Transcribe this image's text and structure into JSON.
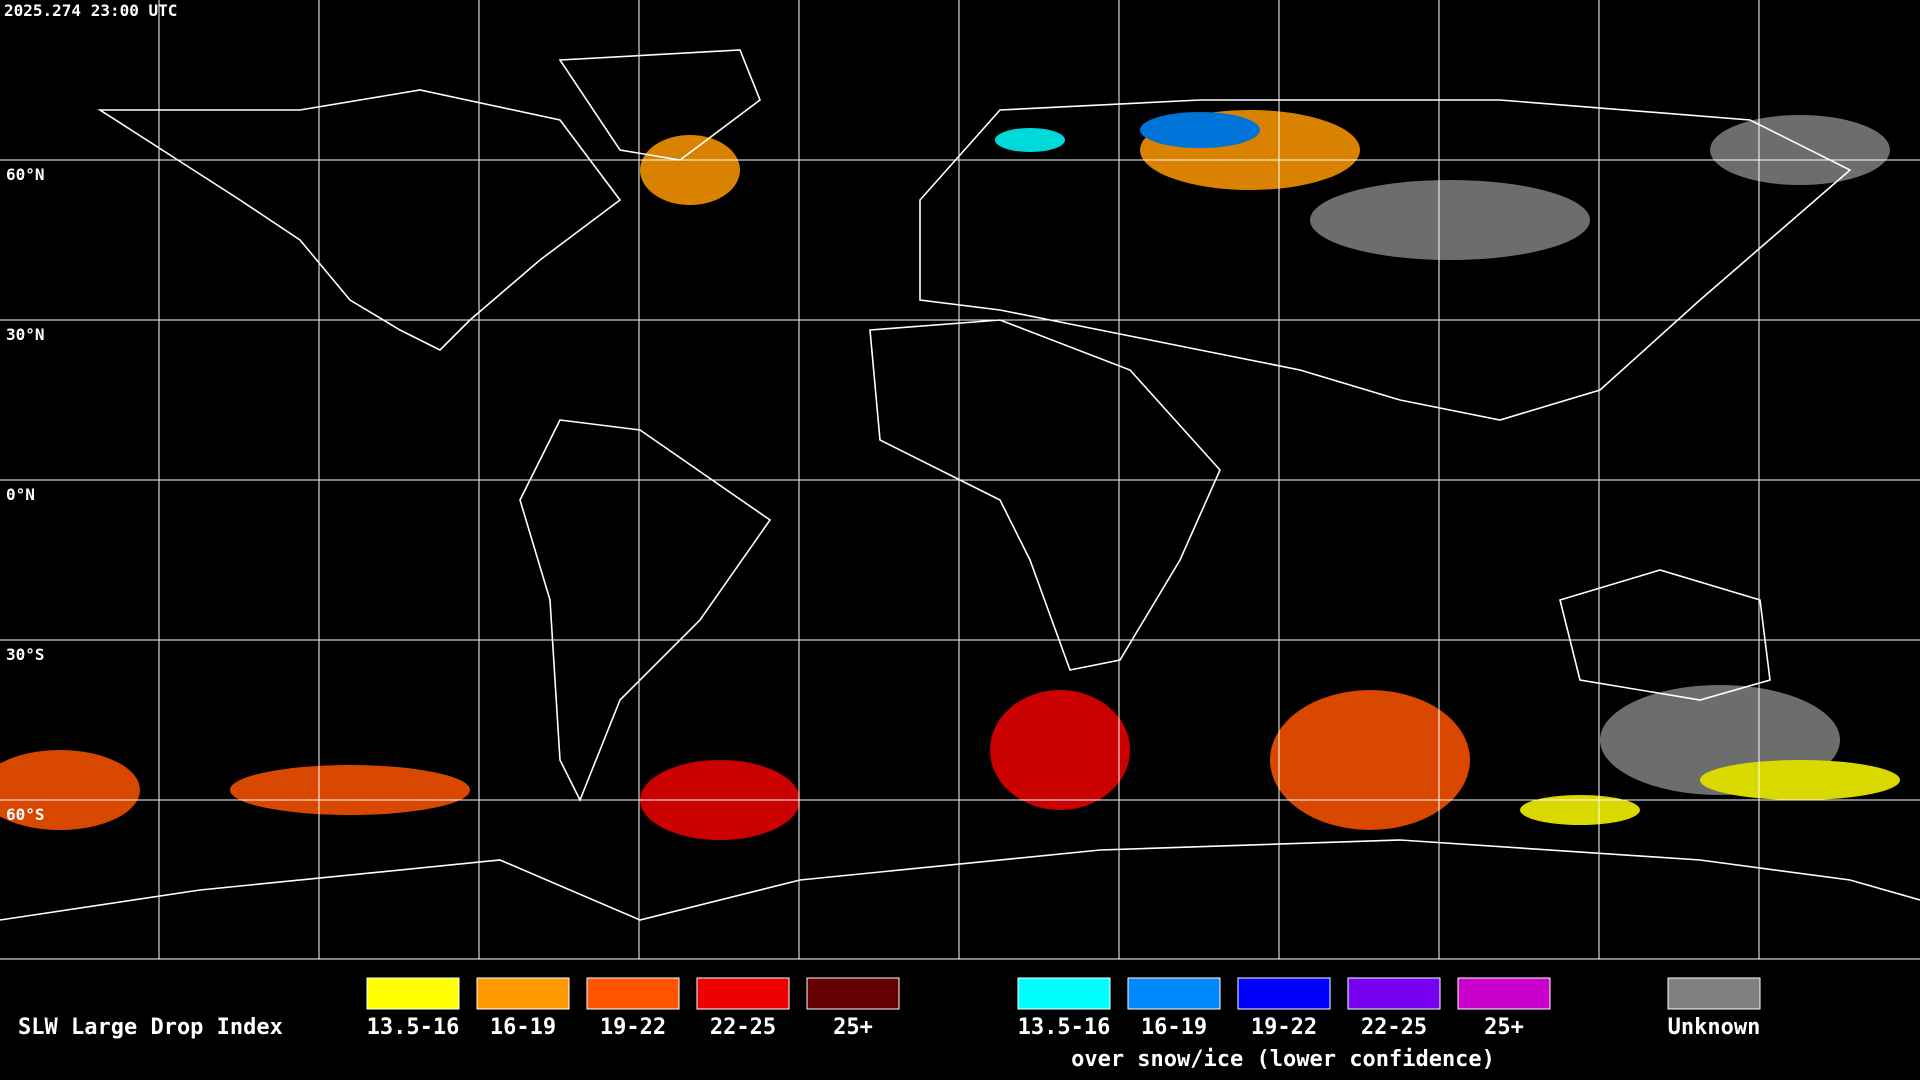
{
  "header": {
    "timestamp": "2025.274 23:00 UTC"
  },
  "map": {
    "lat_labels": [
      "60°N",
      "30°N",
      "0°N",
      "30°S",
      "60°S"
    ]
  },
  "legend": {
    "title": "SLW Large Drop Index",
    "items": [
      {
        "label": "13.5-16",
        "color": "#ffff00"
      },
      {
        "label": "16-19",
        "color": "#ff9900"
      },
      {
        "label": "19-22",
        "color": "#ff5500"
      },
      {
        "label": "22-25",
        "color": "#ee0000"
      },
      {
        "label": "25+",
        "color": "#660000"
      }
    ],
    "snow_items": [
      {
        "label": "13.5-16",
        "color": "#00ffff"
      },
      {
        "label": "16-19",
        "color": "#0088ff"
      },
      {
        "label": "19-22",
        "color": "#0000ff"
      },
      {
        "label": "22-25",
        "color": "#7700ee"
      },
      {
        "label": "25+",
        "color": "#cc00cc"
      }
    ],
    "snow_caption": "over snow/ice (lower confidence)",
    "unknown": {
      "label": "Unknown",
      "color": "#808080"
    }
  }
}
